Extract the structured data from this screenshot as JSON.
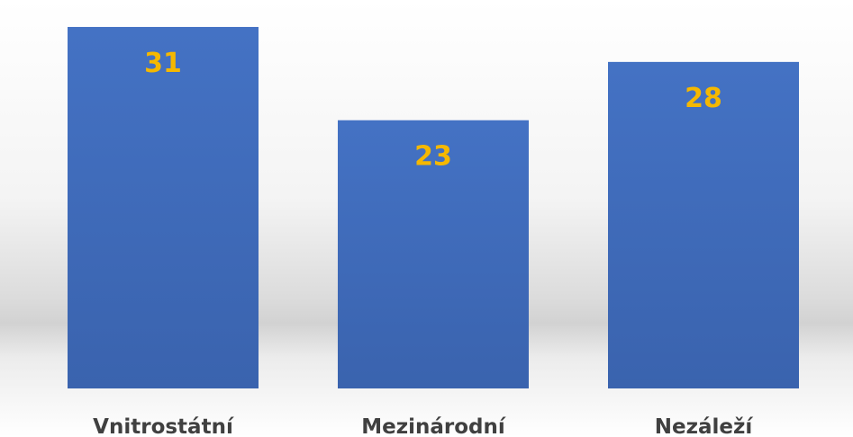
{
  "chart_data": {
    "type": "bar",
    "categories": [
      "Vnitrostátní",
      "Mezinárodní",
      "Nezáleží"
    ],
    "values": [
      31,
      23,
      28
    ],
    "title": "",
    "xlabel": "",
    "ylabel": "",
    "ylim": [
      0,
      32
    ],
    "grid": false,
    "legend": "none",
    "data_labels": true,
    "colors": {
      "bar": "#4472c4",
      "bar_dark": "#3a63ae",
      "data_label": "#f5b800",
      "category_label": "#404040",
      "floor_shadow": "#cfcfcf"
    }
  }
}
